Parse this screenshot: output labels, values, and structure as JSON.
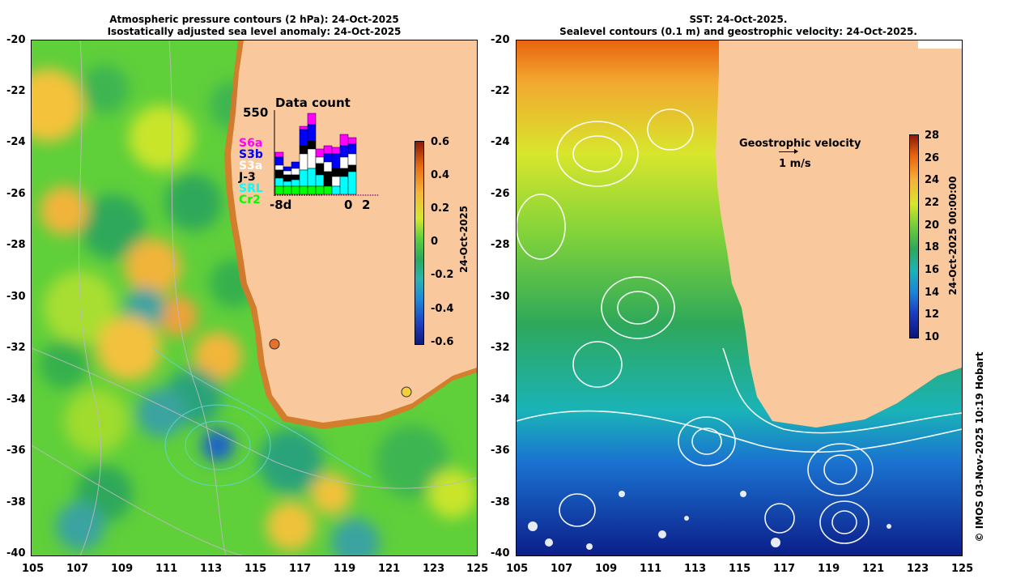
{
  "left_panel": {
    "title_line1": "Atmospheric pressure contours (2 hPa): 24-Oct-2025",
    "title_line2": "Isostatically adjusted sea level anomaly: 24-Oct-2025",
    "lat_ticks": [
      "-20",
      "-22",
      "-24",
      "-26",
      "-28",
      "-30",
      "-32",
      "-34",
      "-36",
      "-38",
      "-40"
    ],
    "lon_ticks": [
      "105",
      "107",
      "109",
      "111",
      "113",
      "115",
      "117",
      "119",
      "121",
      "123",
      "125"
    ],
    "colorbar": {
      "ticks": [
        "0.6",
        "0.4",
        "0.2",
        "0",
        "-0.2",
        "-0.4",
        "-0.6"
      ],
      "label": "24-Oct-2025",
      "range": [
        -0.6,
        0.6
      ]
    },
    "inset": {
      "title": "Data count",
      "ymax_label": "550",
      "x_left_label": "-8d",
      "x_mid_label": "0",
      "x_right_label": "2",
      "satellites": [
        {
          "name": "S6a",
          "color": "#ff00ff"
        },
        {
          "name": "S3b",
          "color": "#0000ff"
        },
        {
          "name": "S3a",
          "color": "#ffffff"
        },
        {
          "name": "J-3",
          "color": "#000000"
        },
        {
          "name": "SRL",
          "color": "#00ffff"
        },
        {
          "name": "Cr2",
          "color": "#00ff00"
        }
      ]
    }
  },
  "right_panel": {
    "title_line1": "SST: 24-Oct-2025.",
    "title_line2": "Sealevel contours (0.1 m) and geostrophic velocity: 24-Oct-2025.",
    "lat_ticks": [
      "-20",
      "-22",
      "-24",
      "-26",
      "-28",
      "-30",
      "-32",
      "-34",
      "-36",
      "-38",
      "-40"
    ],
    "lon_ticks": [
      "105",
      "107",
      "109",
      "111",
      "113",
      "115",
      "117",
      "119",
      "121",
      "123",
      "125"
    ],
    "velocity_label": "Geostrophic velocity",
    "velocity_scale": "1 m/s",
    "colorbar": {
      "ticks": [
        "28",
        "26",
        "24",
        "22",
        "20",
        "18",
        "16",
        "14",
        "12",
        "10"
      ],
      "label": "24-Oct-2025 00:00:00",
      "range": [
        10,
        28
      ]
    }
  },
  "credit": "© IMOS 03-Nov-2025 10:19 Hobart",
  "colors": {
    "land": "#f9c89d",
    "ssha_positive": "#f5b83a",
    "ssha_zero": "#35b548",
    "sst_warm": "#e8730f",
    "sst_cold": "#0a2a9c"
  }
}
